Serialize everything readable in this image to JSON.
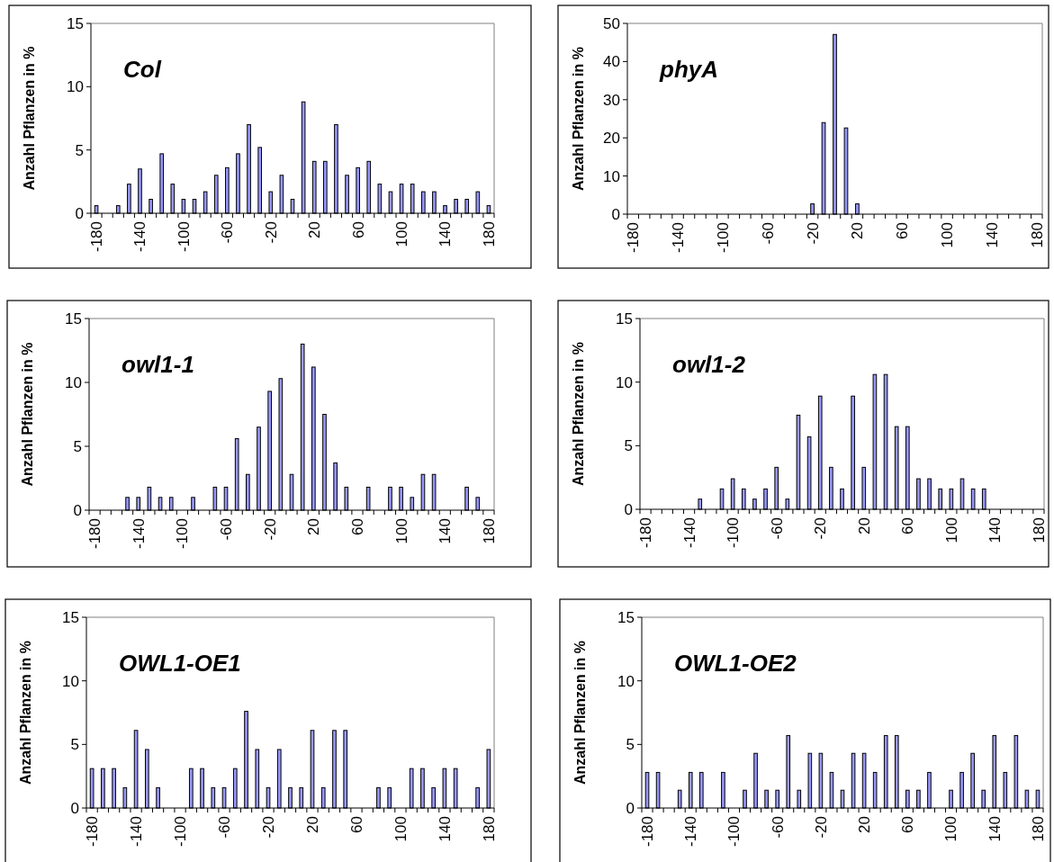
{
  "chart_data": [
    {
      "type": "bar",
      "title": "Col",
      "ylabel": "Anzahl Pflanzen in %",
      "categories": [
        "-180",
        null,
        null,
        null,
        "-140",
        null,
        null,
        null,
        "-100",
        null,
        null,
        null,
        "-60",
        null,
        null,
        null,
        "-20",
        null,
        null,
        null,
        "20",
        null,
        null,
        null,
        "60",
        null,
        null,
        null,
        "100",
        null,
        null,
        null,
        "140",
        null,
        null,
        null,
        "180"
      ],
      "values": [
        0.6,
        0,
        0.6,
        2.3,
        3.5,
        1.1,
        4.7,
        2.3,
        1.1,
        1.1,
        1.7,
        3.0,
        3.6,
        4.7,
        7.0,
        5.2,
        1.7,
        3.0,
        1.1,
        8.8,
        4.1,
        4.1,
        7.0,
        3.0,
        3.6,
        4.1,
        2.3,
        1.7,
        2.3,
        2.3,
        1.7,
        1.7,
        0.6,
        1.1,
        1.1,
        1.7,
        0.6
      ],
      "color": "#9999ff",
      "ylim": [
        0,
        15
      ],
      "yticks": [
        0,
        5,
        10,
        15
      ],
      "grid": false
    },
    {
      "type": "bar",
      "title": "phyA",
      "ylabel": "Anzahl Pflanzen in %",
      "categories": [
        "-180",
        null,
        null,
        null,
        "-140",
        null,
        null,
        null,
        "-100",
        null,
        null,
        null,
        "-60",
        null,
        null,
        null,
        "-20",
        null,
        null,
        null,
        "20",
        null,
        null,
        null,
        "60",
        null,
        null,
        null,
        "100",
        null,
        null,
        null,
        "140",
        null,
        null,
        null,
        "180"
      ],
      "values": [
        0,
        0,
        0,
        0,
        0,
        0,
        0,
        0,
        0,
        0,
        0,
        0,
        0,
        0,
        0,
        0,
        2.7,
        24,
        47.1,
        22.6,
        2.7,
        0,
        0,
        0,
        0,
        0,
        0,
        0,
        0,
        0,
        0,
        0,
        0,
        0,
        0,
        0,
        0
      ],
      "color": "#9999ff",
      "ylim": [
        0,
        50
      ],
      "yticks": [
        0,
        10,
        20,
        30,
        40,
        50
      ],
      "grid": false
    },
    {
      "type": "bar",
      "title": "owl1-1",
      "ylabel": "Anzahl Pflanzen in %",
      "categories": [
        "-180",
        null,
        null,
        null,
        "-140",
        null,
        null,
        null,
        "-100",
        null,
        null,
        null,
        "-60",
        null,
        null,
        null,
        "-20",
        null,
        null,
        null,
        "20",
        null,
        null,
        null,
        "60",
        null,
        null,
        null,
        "100",
        null,
        null,
        null,
        "140",
        null,
        null,
        null,
        "180"
      ],
      "values": [
        0,
        0,
        0,
        1.0,
        1.0,
        1.8,
        1.0,
        1.0,
        0,
        1.0,
        0,
        1.8,
        1.8,
        5.6,
        2.8,
        6.5,
        9.3,
        10.3,
        2.8,
        13.0,
        11.2,
        7.5,
        3.7,
        1.8,
        0,
        1.8,
        0,
        1.8,
        1.8,
        1.0,
        2.8,
        2.8,
        0,
        0,
        1.8,
        1.0,
        0
      ],
      "color": "#9999ff",
      "ylim": [
        0,
        15
      ],
      "yticks": [
        0,
        5,
        10,
        15
      ],
      "grid": false
    },
    {
      "type": "bar",
      "title": "owl1-2",
      "ylabel": "Anzahl Pflanzen in %",
      "categories": [
        "-180",
        null,
        null,
        null,
        "-140",
        null,
        null,
        null,
        "-100",
        null,
        null,
        null,
        "-60",
        null,
        null,
        null,
        "-20",
        null,
        null,
        null,
        "20",
        null,
        null,
        null,
        "60",
        null,
        null,
        null,
        "100",
        null,
        null,
        null,
        "140",
        null,
        null,
        null,
        "180"
      ],
      "values": [
        0,
        0,
        0,
        0,
        0,
        0.8,
        0,
        1.6,
        2.4,
        1.6,
        0.8,
        1.6,
        3.3,
        0.8,
        7.4,
        5.7,
        8.9,
        3.3,
        1.6,
        8.9,
        3.3,
        10.6,
        10.6,
        6.5,
        6.5,
        2.4,
        2.4,
        1.6,
        1.6,
        2.4,
        1.6,
        1.6,
        0,
        0,
        0,
        0,
        0
      ],
      "color": "#9999ff",
      "ylim": [
        0,
        15
      ],
      "yticks": [
        0,
        5,
        10,
        15
      ],
      "grid": false
    },
    {
      "type": "bar",
      "title": "OWL1-OE1",
      "ylabel": "Anzahl Pflanzen in %",
      "categories": [
        "-180",
        null,
        null,
        null,
        "-140",
        null,
        null,
        null,
        "-100",
        null,
        null,
        null,
        "-60",
        null,
        null,
        null,
        "-20",
        null,
        null,
        null,
        "20",
        null,
        null,
        null,
        "60",
        null,
        null,
        null,
        "100",
        null,
        null,
        null,
        "140",
        null,
        null,
        null,
        "180"
      ],
      "values": [
        3.1,
        3.1,
        3.1,
        1.6,
        6.1,
        4.6,
        1.6,
        0,
        0,
        3.1,
        3.1,
        1.6,
        1.6,
        3.1,
        7.6,
        4.6,
        1.6,
        4.6,
        1.6,
        1.6,
        6.1,
        1.6,
        6.1,
        6.1,
        0,
        0,
        1.6,
        1.6,
        0,
        3.1,
        3.1,
        1.6,
        3.1,
        3.1,
        0,
        1.6,
        4.6
      ],
      "color": "#9999ff",
      "ylim": [
        0,
        15
      ],
      "yticks": [
        0,
        5,
        10,
        15
      ],
      "grid": false
    },
    {
      "type": "bar",
      "title": "OWL1-OE2",
      "ylabel": "Anzahl Pflanzen in %",
      "categories": [
        "-180",
        null,
        null,
        null,
        "-140",
        null,
        null,
        null,
        "-100",
        null,
        null,
        null,
        "-60",
        null,
        null,
        null,
        "-20",
        null,
        null,
        null,
        "20",
        null,
        null,
        null,
        "60",
        null,
        null,
        null,
        "100",
        null,
        null,
        null,
        "140",
        null,
        null,
        null,
        "180"
      ],
      "values": [
        2.8,
        2.8,
        0,
        1.4,
        2.8,
        2.8,
        0,
        2.8,
        0,
        1.4,
        4.3,
        1.4,
        1.4,
        5.7,
        1.4,
        4.3,
        4.3,
        2.8,
        1.4,
        4.3,
        4.3,
        2.8,
        5.7,
        5.7,
        1.4,
        1.4,
        2.8,
        0,
        1.4,
        2.8,
        4.3,
        1.4,
        5.7,
        2.8,
        5.7,
        1.4,
        1.4
      ],
      "color": "#9999ff",
      "ylim": [
        0,
        15
      ],
      "yticks": [
        0,
        5,
        10,
        15
      ],
      "grid": false
    }
  ]
}
